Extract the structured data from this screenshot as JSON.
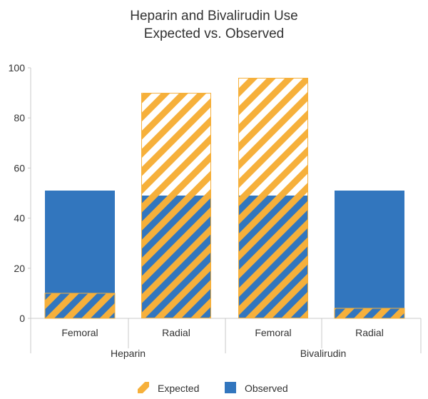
{
  "chart_data": {
    "type": "bar",
    "title_lines": [
      "Heparin and Bivalirudin Use",
      "Expected vs. Observed"
    ],
    "groups": [
      {
        "name": "Heparin",
        "categories": [
          "Femoral",
          "Radial"
        ]
      },
      {
        "name": "Bivalirudin",
        "categories": [
          "Femoral",
          "Radial"
        ]
      }
    ],
    "categories": [
      "Femoral",
      "Radial",
      "Femoral",
      "Radial"
    ],
    "series": [
      {
        "name": "Expected",
        "values": [
          10,
          90,
          96,
          4
        ],
        "style": "striped",
        "color": "#F6B03B"
      },
      {
        "name": "Observed",
        "values": [
          51,
          49,
          49,
          51
        ],
        "style": "solid",
        "color": "#3276BE"
      }
    ],
    "ylim": [
      0,
      100
    ],
    "yticks": [
      0,
      20,
      40,
      60,
      80,
      100
    ],
    "xlabel": "",
    "ylabel": "",
    "grid": false,
    "legend_position": "bottom"
  },
  "colors": {
    "expected": "#F6B03B",
    "observed": "#3276BE",
    "axis": "#C8C8C8"
  }
}
